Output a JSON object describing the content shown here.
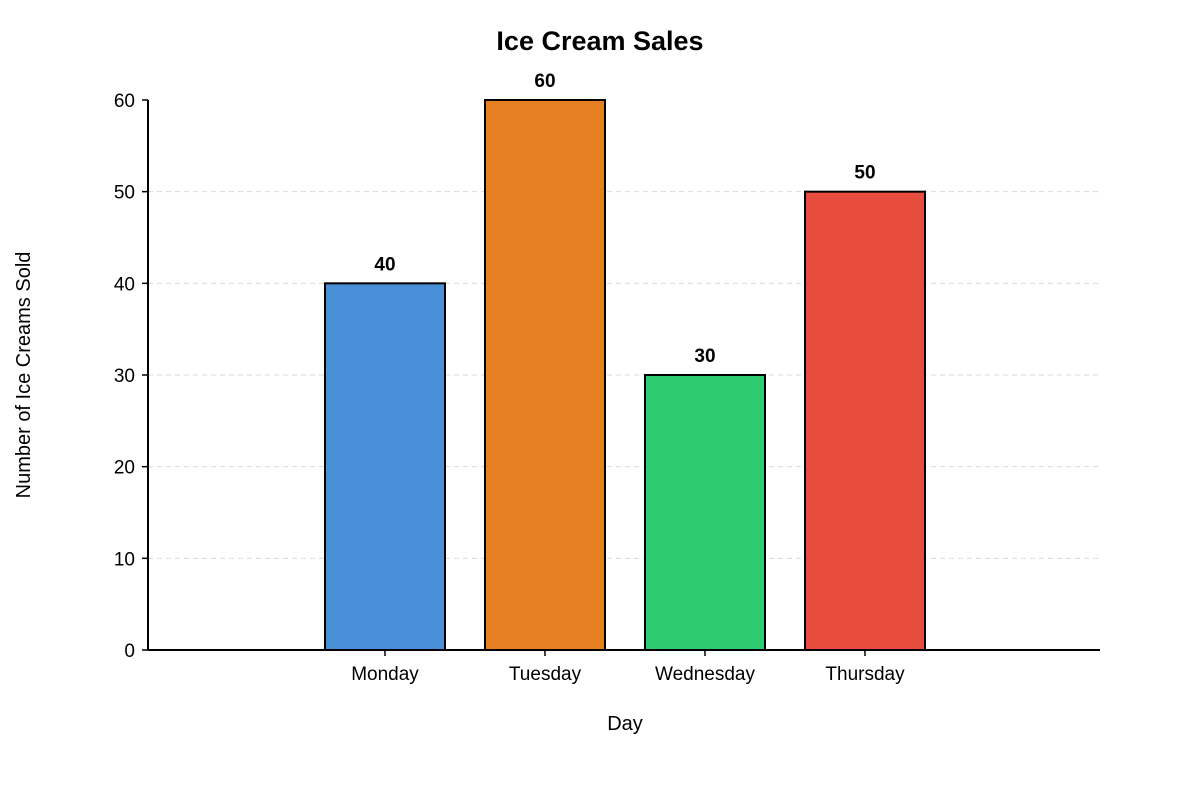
{
  "chart_data": {
    "type": "bar",
    "title": "Ice Cream Sales",
    "xlabel": "Day",
    "ylabel": "Number of Ice Creams Sold",
    "categories": [
      "Monday",
      "Tuesday",
      "Wednesday",
      "Thursday"
    ],
    "values": [
      40,
      60,
      30,
      50
    ],
    "colors": [
      "#4a90d9",
      "#e67e22",
      "#2ecc71",
      "#e74c3c"
    ],
    "ylim": [
      0,
      60
    ],
    "yticks": [
      0,
      10,
      20,
      30,
      40,
      50,
      60
    ],
    "grid": true,
    "legend": "none"
  }
}
